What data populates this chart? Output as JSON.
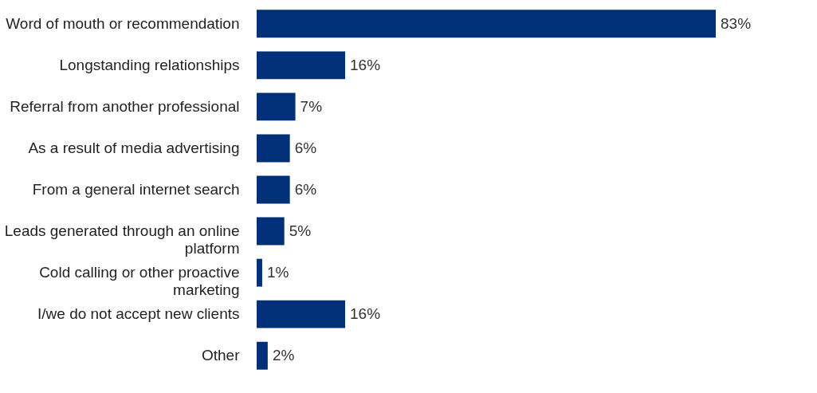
{
  "chart_data": {
    "type": "bar",
    "orientation": "horizontal",
    "categories": [
      "Word of mouth or recommendation",
      "Longstanding relationships",
      "Referral from another professional",
      "As a result of media advertising",
      "From a general internet search",
      "Leads generated through an online platform",
      "Cold calling or other proactive marketing",
      "I/we do not accept new clients",
      "Other"
    ],
    "values": [
      83,
      16,
      7,
      6,
      6,
      5,
      1,
      16,
      2
    ],
    "value_labels": [
      "83%",
      "16%",
      "7%",
      "6%",
      "6%",
      "5%",
      "1%",
      "16%",
      "2%"
    ],
    "color": "#003078",
    "grid": false
  }
}
